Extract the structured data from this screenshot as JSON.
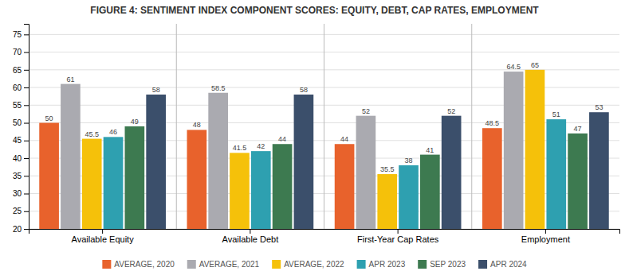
{
  "chart_data": {
    "type": "bar",
    "title": "FIGURE 4: SENTIMENT INDEX COMPONENT SCORES: EQUITY, DEBT, CAP RATES, EMPLOYMENT",
    "categories": [
      "Available Equity",
      "Available Debt",
      "First-Year Cap Rates",
      "Employment"
    ],
    "series": [
      {
        "name": "AVERAGE, 2020",
        "color": "#E8622C",
        "values": [
          50,
          48,
          44,
          48.5
        ]
      },
      {
        "name": "AVERAGE, 2021",
        "color": "#AAAAB0",
        "values": [
          61,
          58.5,
          52,
          64.5
        ]
      },
      {
        "name": "AVERAGE, 2022",
        "color": "#F5C10A",
        "values": [
          45.5,
          41.5,
          35.5,
          65
        ]
      },
      {
        "name": "APR 2023",
        "color": "#2EA0B0",
        "values": [
          46,
          42,
          38,
          51
        ]
      },
      {
        "name": "SEP 2023",
        "color": "#3D7A50",
        "values": [
          49,
          44,
          41,
          47
        ]
      },
      {
        "name": "APR 2024",
        "color": "#3B4F6B",
        "values": [
          58,
          58,
          52,
          53
        ]
      }
    ],
    "ylim": [
      20,
      78
    ],
    "yticks": [
      20,
      25,
      30,
      35,
      40,
      45,
      50,
      55,
      60,
      65,
      70,
      75
    ],
    "grid": true,
    "legend": "bottom",
    "data_labels": true
  }
}
